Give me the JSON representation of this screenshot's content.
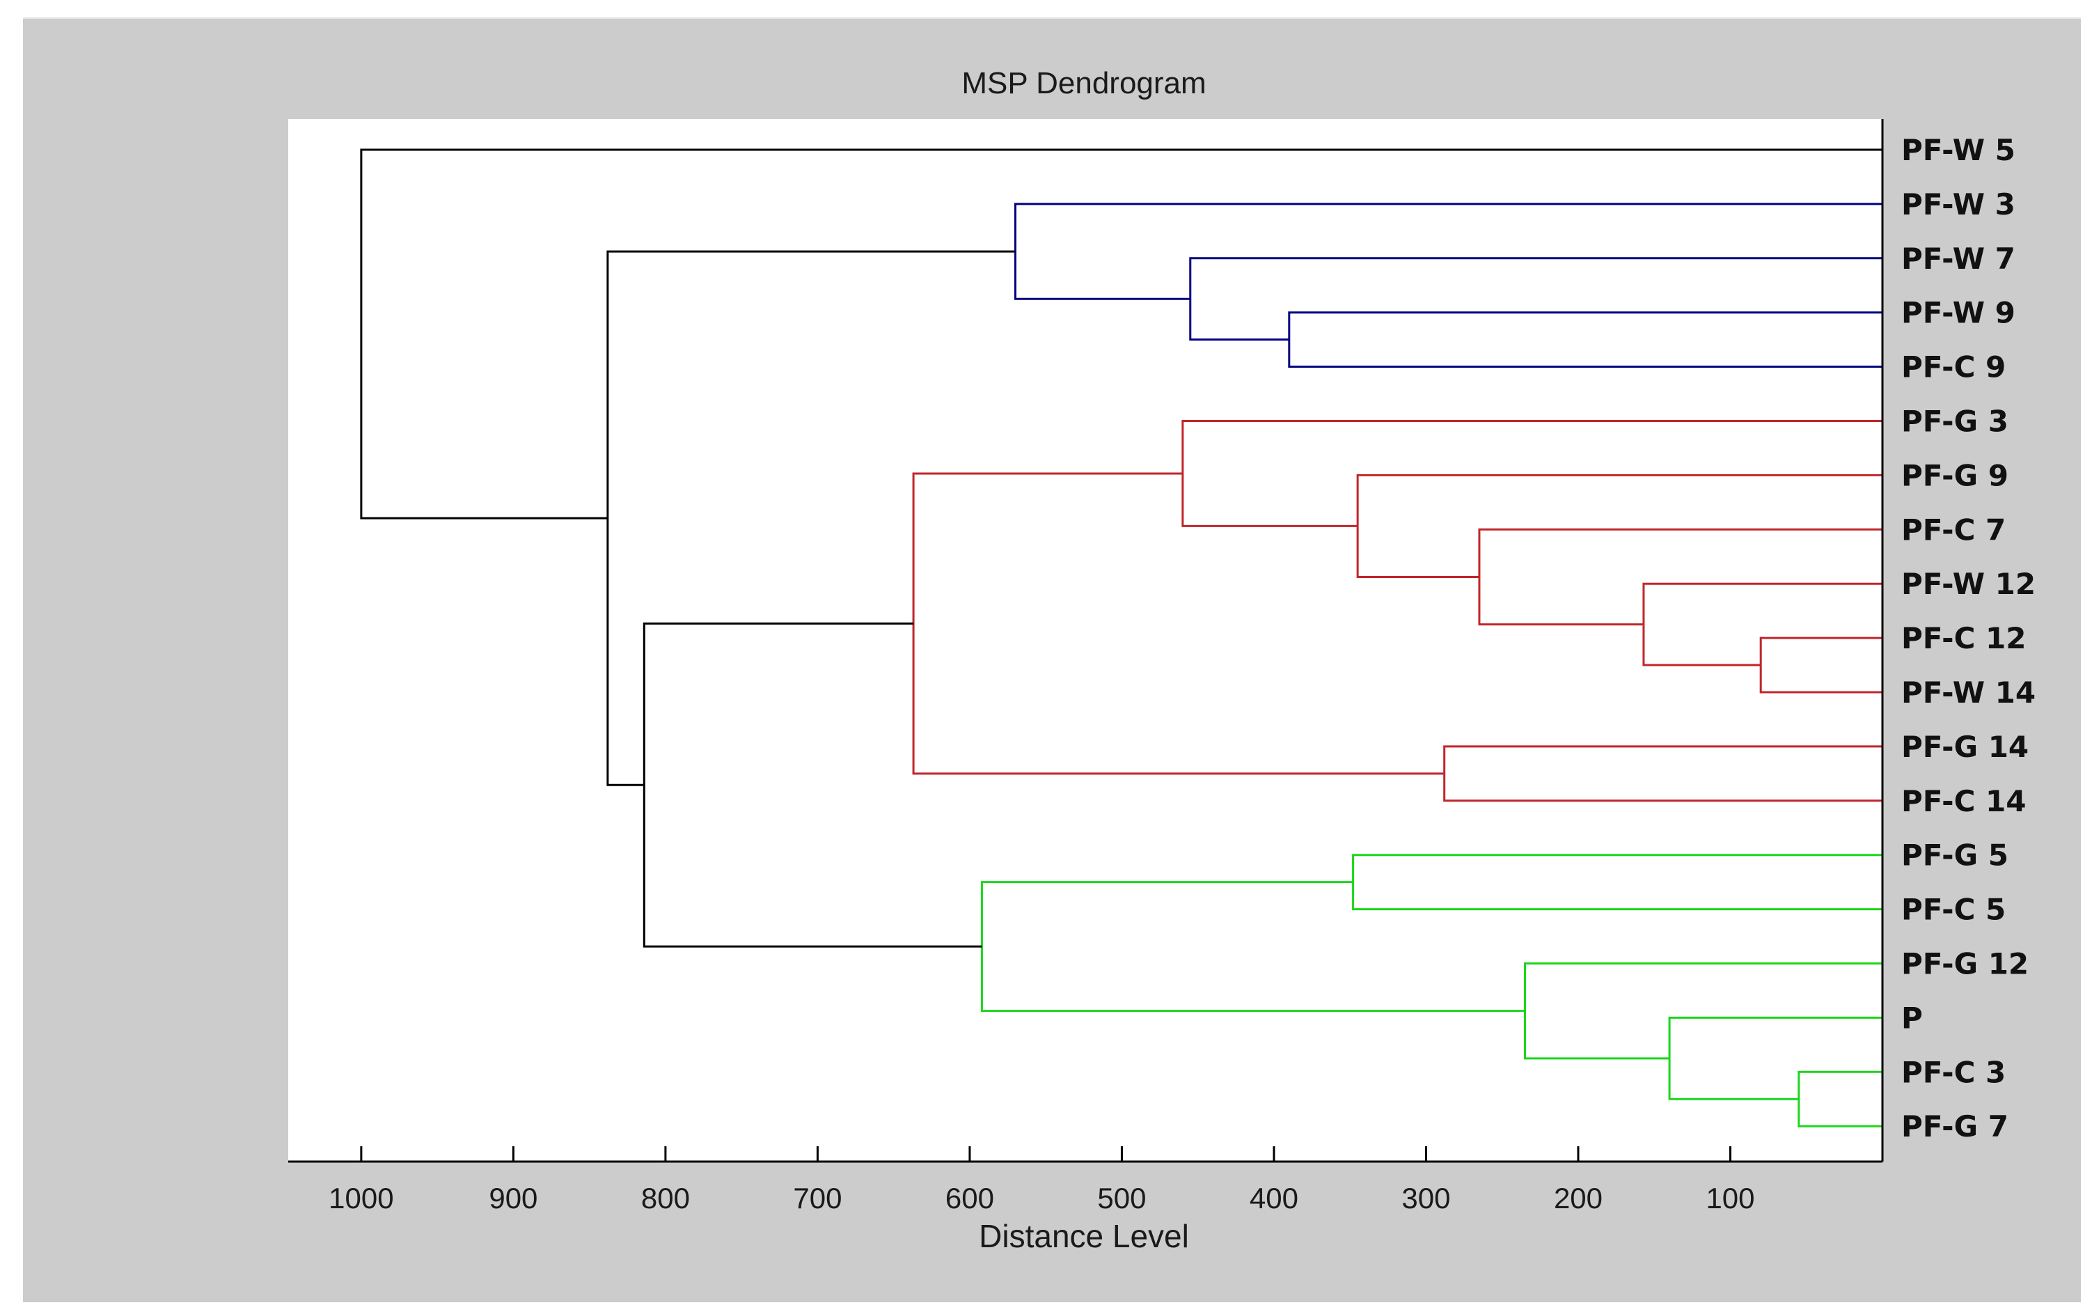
{
  "chart_data": {
    "type": "dendrogram",
    "title": "MSP Dendrogram",
    "xlabel": "Distance Level",
    "ylabel": "",
    "xlim": [
      1048,
      0
    ],
    "xticks": [
      1000,
      900,
      800,
      700,
      600,
      500,
      400,
      300,
      200,
      100
    ],
    "leaves": [
      "PF-W 5",
      "PF-W 3",
      "PF-W 7",
      "PF-W 9",
      "PF-C 9",
      "PF-G 3",
      "PF-G 9",
      "PF-C 7",
      "PF-W 12",
      "PF-C 12",
      "PF-W 14",
      "PF-G 14",
      "PF-C 14",
      "PF-G 5",
      "PF-C 5",
      "PF-G 12",
      "P",
      "PF-C 3",
      "PF-G 7"
    ],
    "colors": {
      "black": "#000000",
      "blue": "#000080",
      "red": "#c0262b",
      "green": "#1bd61b"
    },
    "merges": [
      {
        "id": "m1",
        "left": "PF-W 9",
        "right": "PF-C 9",
        "distance": 390,
        "color": "blue"
      },
      {
        "id": "m2",
        "left": "PF-W 7",
        "right": "m1",
        "distance": 455,
        "color": "blue"
      },
      {
        "id": "m3",
        "left": "PF-W 3",
        "right": "m2",
        "distance": 570,
        "color": "blue"
      },
      {
        "id": "m4",
        "left": "PF-C 12",
        "right": "PF-W 14",
        "distance": 80,
        "color": "red"
      },
      {
        "id": "m5",
        "left": "PF-W 12",
        "right": "m4",
        "distance": 157,
        "color": "red"
      },
      {
        "id": "m6",
        "left": "PF-C 7",
        "right": "m5",
        "distance": 265,
        "color": "red"
      },
      {
        "id": "m7",
        "left": "PF-G 9",
        "right": "m6",
        "distance": 345,
        "color": "red"
      },
      {
        "id": "m8",
        "left": "PF-G 3",
        "right": "m7",
        "distance": 460,
        "color": "red"
      },
      {
        "id": "m9",
        "left": "PF-G 14",
        "right": "PF-C 14",
        "distance": 288,
        "color": "red"
      },
      {
        "id": "m10",
        "left": "m8",
        "right": "m9",
        "distance": 637,
        "color": "red"
      },
      {
        "id": "m11",
        "left": "PF-G 5",
        "right": "PF-C 5",
        "distance": 348,
        "color": "green"
      },
      {
        "id": "m12",
        "left": "PF-C 3",
        "right": "PF-G 7",
        "distance": 55,
        "color": "green"
      },
      {
        "id": "m13",
        "left": "P",
        "right": "m12",
        "distance": 140,
        "color": "green"
      },
      {
        "id": "m14",
        "left": "PF-G 12",
        "right": "m13",
        "distance": 235,
        "color": "green"
      },
      {
        "id": "m15",
        "left": "m11",
        "right": "m14",
        "distance": 592,
        "color": "green"
      },
      {
        "id": "m16",
        "left": "m10",
        "right": "m15",
        "distance": 814,
        "color": "black"
      },
      {
        "id": "m17",
        "left": "m3",
        "right": "m16",
        "distance": 838,
        "color": "black"
      },
      {
        "id": "m18",
        "left": "PF-W 5",
        "right": "m17",
        "distance": 1000,
        "color": "black"
      }
    ]
  }
}
